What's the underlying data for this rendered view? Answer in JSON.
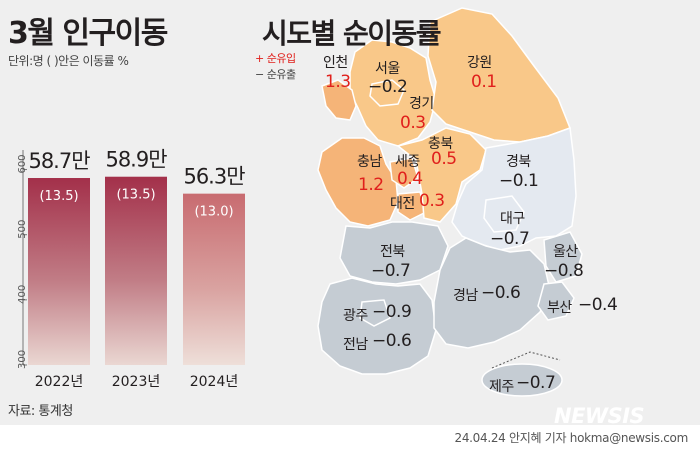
{
  "header": {
    "title": "3월 인구이동",
    "unit_note": "단위:명 (  )안은 이동률 %"
  },
  "source": "자료: 통계청",
  "chart_data": {
    "type": "bar",
    "categories": [
      "2022년",
      "2023년",
      "2024년"
    ],
    "values": [
      587,
      589,
      563
    ],
    "value_labels": [
      "58.7만",
      "58.9만",
      "56.3만"
    ],
    "rate_labels": [
      "(13.5)",
      "(13.5)",
      "(13.0)"
    ],
    "y_ticks": [
      "300",
      "400",
      "500",
      "600"
    ],
    "ylim": [
      300,
      630
    ],
    "bar_colors": [
      "#a3304a",
      "#a3304a",
      "#c86b70"
    ]
  },
  "map": {
    "title": "시도별 순이동률",
    "legend_in": "+ 순유입",
    "legend_out": "− 순유출",
    "colors": {
      "inflow_dark": "#f5b478",
      "inflow_light": "#f9c889",
      "outflow_light": "#e4e9f0",
      "outflow": "#c5ccd3",
      "border": "#ffffff"
    },
    "regions": [
      {
        "name": "인천",
        "value": "1.3",
        "sign": "pos"
      },
      {
        "name": "서울",
        "value": "−0.2",
        "sign": "neg"
      },
      {
        "name": "강원",
        "value": "0.1",
        "sign": "pos"
      },
      {
        "name": "경기",
        "value": "0.3",
        "sign": "pos"
      },
      {
        "name": "충북",
        "value": "0.5",
        "sign": "pos"
      },
      {
        "name": "충남",
        "value": "1.2",
        "sign": "pos"
      },
      {
        "name": "세종",
        "value": "0.4",
        "sign": "pos"
      },
      {
        "name": "대전",
        "value": "0.3",
        "sign": "pos"
      },
      {
        "name": "경북",
        "value": "−0.1",
        "sign": "neg"
      },
      {
        "name": "대구",
        "value": "−0.7",
        "sign": "neg"
      },
      {
        "name": "울산",
        "value": "−0.8",
        "sign": "neg"
      },
      {
        "name": "전북",
        "value": "−0.7",
        "sign": "neg"
      },
      {
        "name": "경남",
        "value": "−0.6",
        "sign": "neg"
      },
      {
        "name": "부산",
        "value": "−0.4",
        "sign": "neg"
      },
      {
        "name": "광주",
        "value": "−0.9",
        "sign": "neg"
      },
      {
        "name": "전남",
        "value": "−0.6",
        "sign": "neg"
      },
      {
        "name": "제주",
        "value": "−0.7",
        "sign": "neg"
      }
    ]
  },
  "watermark": "NEWSIS",
  "footer": "24.04.24 안지혜 기자 hokma@newsis.com"
}
